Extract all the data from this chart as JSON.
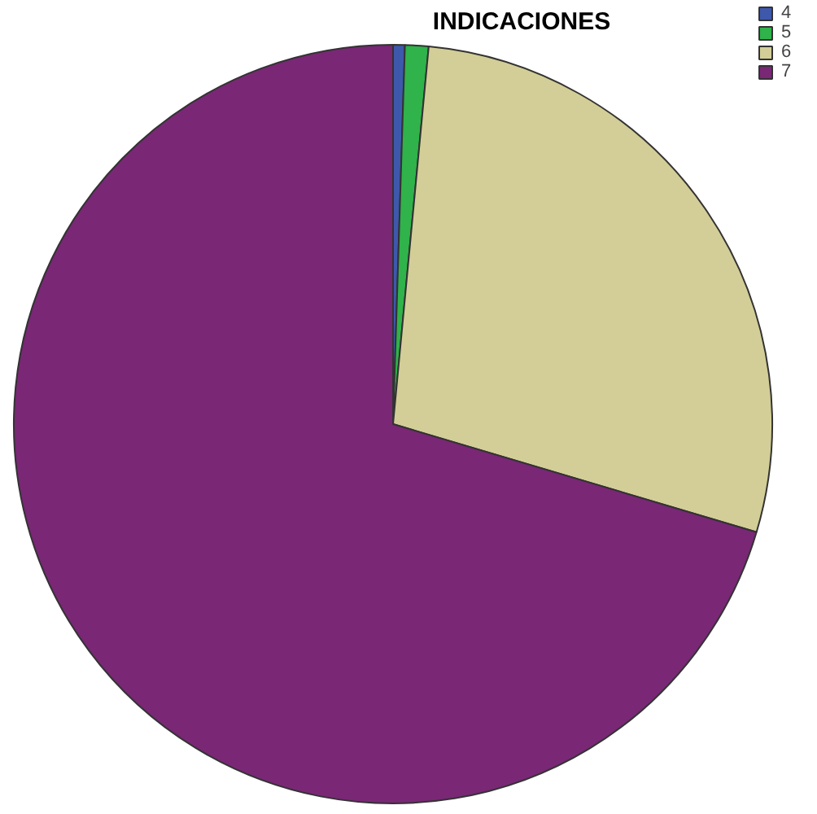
{
  "chart_data": {
    "type": "pie",
    "title": "INDICACIONES",
    "categories": [
      "4",
      "5",
      "6",
      "7"
    ],
    "values": [
      0.5,
      1.0,
      28.1,
      70.4
    ],
    "colors": [
      "#3e58ac",
      "#2fb34a",
      "#d3ce97",
      "#7a2776"
    ],
    "legend": "top right"
  }
}
